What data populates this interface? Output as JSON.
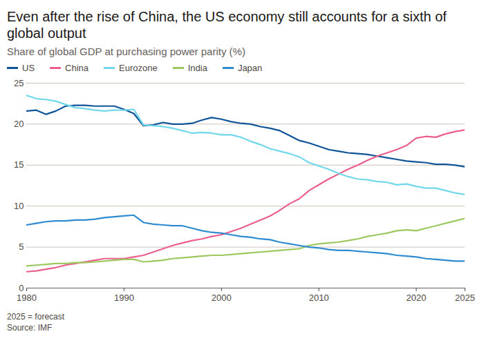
{
  "chart_data": {
    "type": "line",
    "title": "Even after the rise of China, the US economy still accounts for a sixth of global output",
    "subtitle": "Share of global GDP at purchasing power parity (%)",
    "note": "2025 = forecast",
    "source": "Source: IMF",
    "x": [
      1980,
      1981,
      1982,
      1983,
      1984,
      1985,
      1986,
      1987,
      1988,
      1989,
      1990,
      1991,
      1992,
      1993,
      1994,
      1995,
      1996,
      1997,
      1998,
      1999,
      2000,
      2001,
      2002,
      2003,
      2004,
      2005,
      2006,
      2007,
      2008,
      2009,
      2010,
      2011,
      2012,
      2013,
      2014,
      2015,
      2016,
      2017,
      2018,
      2019,
      2020,
      2021,
      2022,
      2023,
      2024,
      2025
    ],
    "series": [
      {
        "name": "US",
        "color": "#0f5499",
        "values": [
          21.6,
          21.7,
          21.2,
          21.6,
          22.2,
          22.3,
          22.3,
          22.2,
          22.2,
          22.2,
          21.8,
          21.3,
          19.8,
          19.9,
          20.2,
          20.0,
          20.0,
          20.1,
          20.5,
          20.8,
          20.6,
          20.3,
          20.1,
          20.0,
          19.7,
          19.5,
          19.2,
          18.6,
          18.0,
          17.7,
          17.3,
          16.9,
          16.7,
          16.5,
          16.4,
          16.3,
          16.1,
          15.9,
          15.7,
          15.5,
          15.4,
          15.3,
          15.1,
          15.1,
          15.0,
          14.8
        ]
      },
      {
        "name": "China",
        "color": "#eb5e8d",
        "values": [
          2.0,
          2.1,
          2.3,
          2.5,
          2.8,
          3.0,
          3.2,
          3.4,
          3.6,
          3.6,
          3.6,
          3.8,
          4.0,
          4.4,
          4.8,
          5.2,
          5.5,
          5.8,
          6.0,
          6.3,
          6.5,
          6.9,
          7.3,
          7.8,
          8.3,
          8.8,
          9.5,
          10.3,
          10.9,
          11.9,
          12.6,
          13.3,
          13.9,
          14.5,
          15.0,
          15.6,
          16.1,
          16.5,
          16.9,
          17.4,
          18.3,
          18.5,
          18.4,
          18.8,
          19.1,
          19.3
        ]
      },
      {
        "name": "Eurozone",
        "color": "#70d8ea",
        "values": [
          23.5,
          23.1,
          23.0,
          22.8,
          22.4,
          22.0,
          21.9,
          21.7,
          21.6,
          21.7,
          21.7,
          21.8,
          19.9,
          19.8,
          19.7,
          19.5,
          19.2,
          18.9,
          19.0,
          18.9,
          18.7,
          18.7,
          18.4,
          17.9,
          17.5,
          17.0,
          16.7,
          16.4,
          16.0,
          15.3,
          14.9,
          14.5,
          14.0,
          13.6,
          13.3,
          13.2,
          13.0,
          12.9,
          12.6,
          12.7,
          12.4,
          12.2,
          12.2,
          11.9,
          11.6,
          11.4
        ]
      },
      {
        "name": "India",
        "color": "#9dc85f",
        "values": [
          2.7,
          2.8,
          2.9,
          3.0,
          3.0,
          3.1,
          3.1,
          3.2,
          3.3,
          3.4,
          3.5,
          3.5,
          3.2,
          3.3,
          3.4,
          3.6,
          3.7,
          3.8,
          3.9,
          4.0,
          4.0,
          4.1,
          4.2,
          4.3,
          4.4,
          4.5,
          4.6,
          4.7,
          4.8,
          5.2,
          5.4,
          5.5,
          5.6,
          5.8,
          6.0,
          6.3,
          6.5,
          6.7,
          7.0,
          7.1,
          7.0,
          7.3,
          7.6,
          7.9,
          8.2,
          8.5
        ]
      },
      {
        "name": "Japan",
        "color": "#2e8bd0",
        "values": [
          7.7,
          7.9,
          8.1,
          8.2,
          8.2,
          8.3,
          8.3,
          8.4,
          8.6,
          8.7,
          8.8,
          8.9,
          8.0,
          7.8,
          7.7,
          7.6,
          7.6,
          7.3,
          7.0,
          6.8,
          6.7,
          6.5,
          6.3,
          6.2,
          6.0,
          5.9,
          5.6,
          5.4,
          5.2,
          5.0,
          4.9,
          4.7,
          4.6,
          4.6,
          4.5,
          4.4,
          4.3,
          4.2,
          4.0,
          3.9,
          3.8,
          3.6,
          3.5,
          3.4,
          3.3,
          3.3
        ]
      }
    ],
    "xlim": [
      1980,
      2025
    ],
    "xticks": [
      1980,
      1990,
      2000,
      2010,
      2020,
      2025
    ],
    "ylim": [
      0,
      25
    ],
    "yticks": [
      0,
      5,
      10,
      15,
      20,
      25
    ],
    "grid": true,
    "legend": "top-left"
  }
}
